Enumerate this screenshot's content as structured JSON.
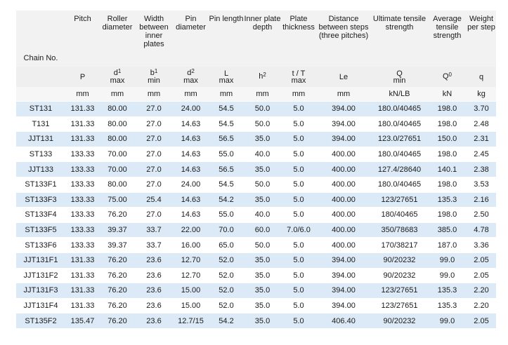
{
  "columns": [
    {
      "key": "chain",
      "header": "Chain No.",
      "symbol": "",
      "limit": "",
      "unit": ""
    },
    {
      "key": "pitch",
      "header": "Pitch",
      "symbol": "P",
      "limit": "",
      "unit": "mm"
    },
    {
      "key": "roller",
      "header": "Roller diameter",
      "symbol": "d1",
      "limit": "max",
      "unit": "mm"
    },
    {
      "key": "width",
      "header": "Width between inner plates",
      "symbol": "b1",
      "limit": "min",
      "unit": "mm"
    },
    {
      "key": "pin_d",
      "header": "Pin diameter",
      "symbol": "d2",
      "limit": "max",
      "unit": "mm"
    },
    {
      "key": "pin_l",
      "header": "Pin length",
      "symbol": "L",
      "limit": "max",
      "unit": "mm"
    },
    {
      "key": "inner_h",
      "header": "Inner plate depth",
      "symbol": "h2",
      "limit": "",
      "unit": "mm"
    },
    {
      "key": "plate_t",
      "header": "Plate thickness",
      "symbol": "t / T",
      "limit": "max",
      "unit": "mm"
    },
    {
      "key": "dist",
      "header": "Distance between steps (three pitches)",
      "symbol": "Le",
      "limit": "",
      "unit": "mm"
    },
    {
      "key": "ult",
      "header": "Ultimate tensile strength",
      "symbol": "Q",
      "limit": "min",
      "unit": "kN/LB"
    },
    {
      "key": "avg",
      "header": "Average tensile strength",
      "symbol": "Q0",
      "limit": "",
      "unit": "kN"
    },
    {
      "key": "weight",
      "header": "Weight per step",
      "symbol": "q",
      "limit": "",
      "unit": "kg"
    }
  ],
  "rows": [
    [
      "ST131",
      "131.33",
      "80.00",
      "27.0",
      "24.00",
      "54.5",
      "50.0",
      "5.0",
      "394.00",
      "180.0/40465",
      "198.0",
      "3.70"
    ],
    [
      "T131",
      "131.33",
      "80.00",
      "27.0",
      "14.63",
      "54.5",
      "50.0",
      "5.0",
      "394.00",
      "180.0/40465",
      "198.0",
      "2.48"
    ],
    [
      "JJT131",
      "131.33",
      "80.00",
      "27.0",
      "14.63",
      "56.5",
      "35.0",
      "5.0",
      "394.00",
      "123.0/27651",
      "150.0",
      "2.31"
    ],
    [
      "ST133",
      "133.33",
      "70.00",
      "27.0",
      "14.63",
      "55.0",
      "40.0",
      "5.0",
      "400.00",
      "180.0/40465",
      "198.0",
      "2.45"
    ],
    [
      "JJT133",
      "133.33",
      "70.00",
      "27.0",
      "14.63",
      "56.5",
      "35.0",
      "5.0",
      "400.00",
      "127.4/28640",
      "140.1",
      "2.38"
    ],
    [
      "ST133F1",
      "133.33",
      "80.00",
      "27.0",
      "24.00",
      "54.5",
      "50.0",
      "5.0",
      "400.00",
      "180.0/40465",
      "198.0",
      "3.53"
    ],
    [
      "ST133F3",
      "133.33",
      "75.00",
      "25.4",
      "14.63",
      "54.2",
      "35.0",
      "5.0",
      "400.00",
      "123/27651",
      "135.3",
      "2.16"
    ],
    [
      "ST133F4",
      "133.33",
      "76.20",
      "27.0",
      "14.63",
      "55.0",
      "40.0",
      "5.0",
      "400.00",
      "180/40465",
      "198.0",
      "2.50"
    ],
    [
      "ST133F5",
      "133.33",
      "39.37",
      "33.7",
      "22.00",
      "70.0",
      "60.0",
      "7.0/6.0",
      "400.00",
      "350/78683",
      "385.0",
      "4.78"
    ],
    [
      "ST133F6",
      "133.33",
      "39.37",
      "33.7",
      "16.00",
      "65.0",
      "50.0",
      "5.0",
      "400.00",
      "170/38217",
      "187.0",
      "3.36"
    ],
    [
      "JJT131F1",
      "131.33",
      "76.20",
      "23.6",
      "12.70",
      "52.0",
      "35.0",
      "5.0",
      "394.00",
      "90/20232",
      "99.0",
      "2.05"
    ],
    [
      "JJT131F2",
      "131.33",
      "76.20",
      "23.6",
      "12.70",
      "52.0",
      "35.0",
      "5.0",
      "394.00",
      "90/20232",
      "99.0",
      "2.05"
    ],
    [
      "JJT131F3",
      "131.33",
      "76.20",
      "23.6",
      "15.00",
      "52.0",
      "35.0",
      "5.0",
      "394.00",
      "123/27651",
      "135.3",
      "2.20"
    ],
    [
      "JJT131F4",
      "131.33",
      "76.20",
      "23.6",
      "15.00",
      "52.0",
      "35.0",
      "5.0",
      "394.00",
      "123/27651",
      "135.3",
      "2.20"
    ],
    [
      "ST135F2",
      "135.47",
      "76.20",
      "23.6",
      "12.7/15",
      "54.2",
      "35.0",
      "5.0",
      "406.40",
      "90/20232",
      "99.0",
      "2.05"
    ]
  ]
}
